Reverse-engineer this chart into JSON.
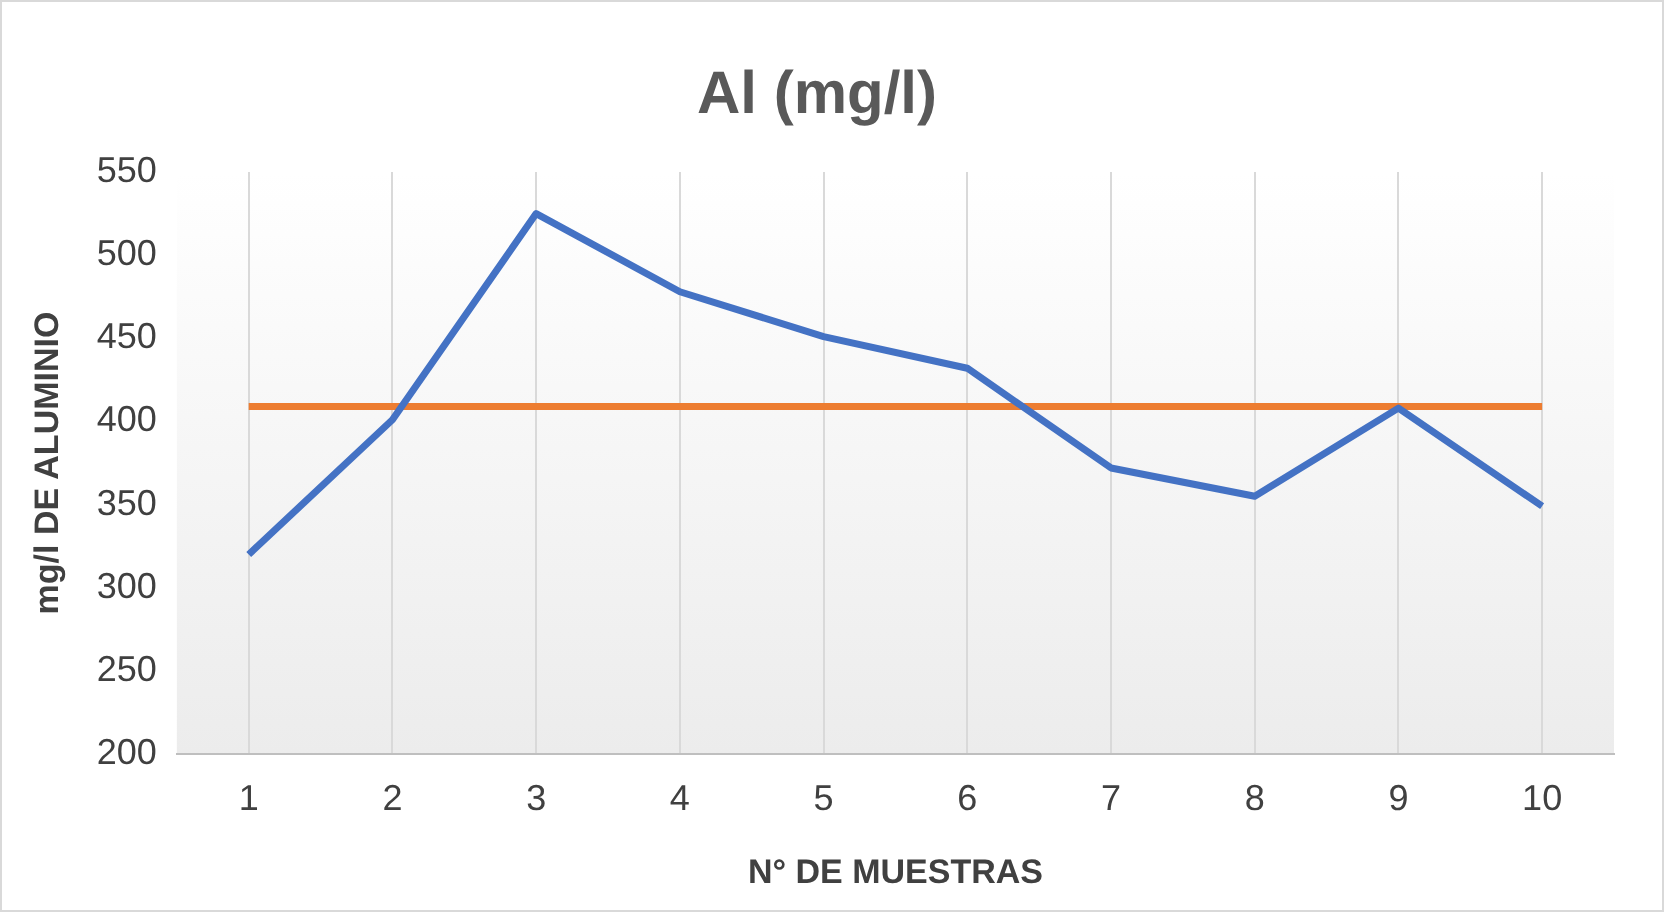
{
  "chart_data": {
    "type": "line",
    "title": "Al (mg/l)",
    "xlabel": "N° DE MUESTRAS",
    "ylabel": "mg/l DE ALUMINIO",
    "categories": [
      "1",
      "2",
      "3",
      "4",
      "5",
      "6",
      "7",
      "8",
      "9",
      "10"
    ],
    "series": [
      {
        "color": "#4472c4",
        "values": [
          320,
          401,
          525,
          478,
          451,
          432,
          372,
          355,
          408,
          349
        ]
      },
      {
        "color": "#ed7d31",
        "values": [
          409,
          409,
          409,
          409,
          409,
          409,
          409,
          409,
          409,
          409
        ]
      }
    ],
    "ylim": [
      200,
      550
    ],
    "yticks": [
      200,
      250,
      300,
      350,
      400,
      450,
      500,
      550
    ],
    "grid": "x",
    "legend": false,
    "marker": "none",
    "line_style": "solid"
  }
}
